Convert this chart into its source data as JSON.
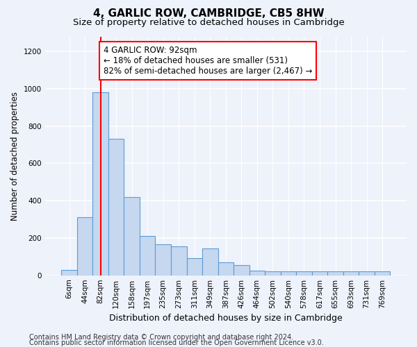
{
  "title": "4, GARLIC ROW, CAMBRIDGE, CB5 8HW",
  "subtitle": "Size of property relative to detached houses in Cambridge",
  "xlabel": "Distribution of detached houses by size in Cambridge",
  "ylabel": "Number of detached properties",
  "footer_line1": "Contains HM Land Registry data © Crown copyright and database right 2024.",
  "footer_line2": "Contains public sector information licensed under the Open Government Licence v3.0.",
  "bar_labels": [
    "6sqm",
    "44sqm",
    "82sqm",
    "120sqm",
    "158sqm",
    "197sqm",
    "235sqm",
    "273sqm",
    "311sqm",
    "349sqm",
    "387sqm",
    "426sqm",
    "464sqm",
    "502sqm",
    "540sqm",
    "578sqm",
    "617sqm",
    "655sqm",
    "693sqm",
    "731sqm",
    "769sqm"
  ],
  "bar_values": [
    30,
    310,
    980,
    730,
    420,
    210,
    165,
    155,
    90,
    145,
    70,
    55,
    25,
    20,
    20,
    20,
    20,
    20,
    20,
    20,
    20
  ],
  "bar_color": "#c5d8f0",
  "bar_edgecolor": "#5b9bd5",
  "vline_x_index": 2,
  "vline_color": "red",
  "annotation_text": "4 GARLIC ROW: 92sqm\n← 18% of detached houses are smaller (531)\n82% of semi-detached houses are larger (2,467) →",
  "annotation_box_color": "white",
  "annotation_box_edgecolor": "red",
  "ylim": [
    0,
    1280
  ],
  "yticks": [
    0,
    200,
    400,
    600,
    800,
    1000,
    1200
  ],
  "background_color": "#eef2fb",
  "axes_background": "#eef2fb",
  "grid_color": "white",
  "title_fontsize": 11,
  "subtitle_fontsize": 9.5,
  "xlabel_fontsize": 9,
  "ylabel_fontsize": 8.5,
  "tick_fontsize": 7.5,
  "annotation_fontsize": 8.5,
  "footer_fontsize": 7
}
